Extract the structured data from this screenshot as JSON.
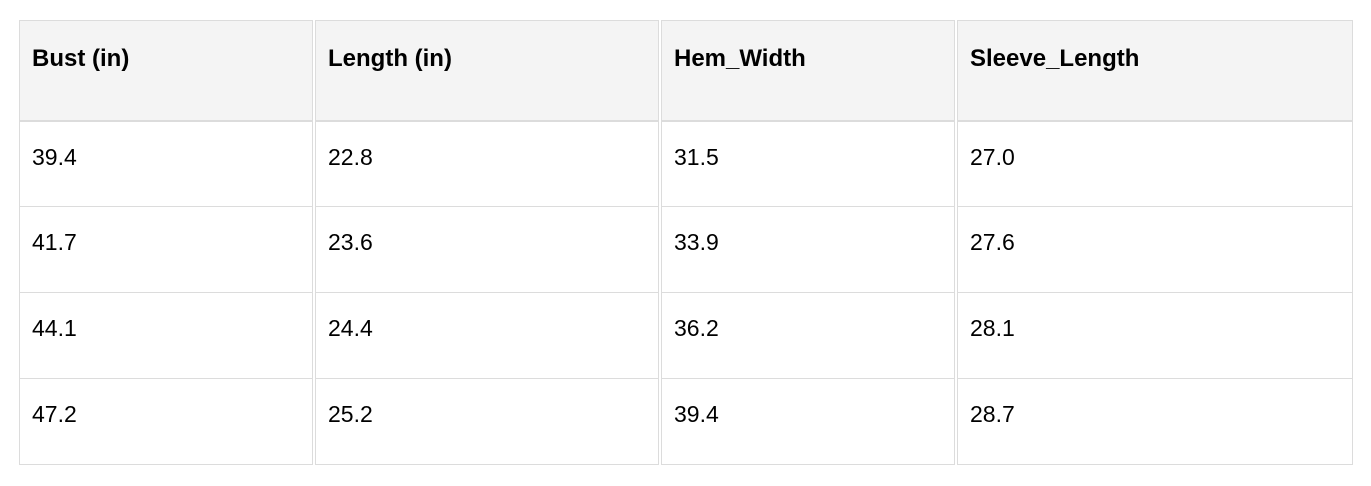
{
  "table": {
    "headers": [
      "Bust (in)",
      "Length (in)",
      "Hem_Width",
      "Sleeve_Length"
    ],
    "rows": [
      [
        "39.4",
        "22.8",
        "31.5",
        "27.0"
      ],
      [
        "41.7",
        "23.6",
        "33.9",
        "27.6"
      ],
      [
        "44.1",
        "24.4",
        "36.2",
        "28.1"
      ],
      [
        "47.2",
        "25.2",
        "39.4",
        "28.7"
      ]
    ]
  }
}
